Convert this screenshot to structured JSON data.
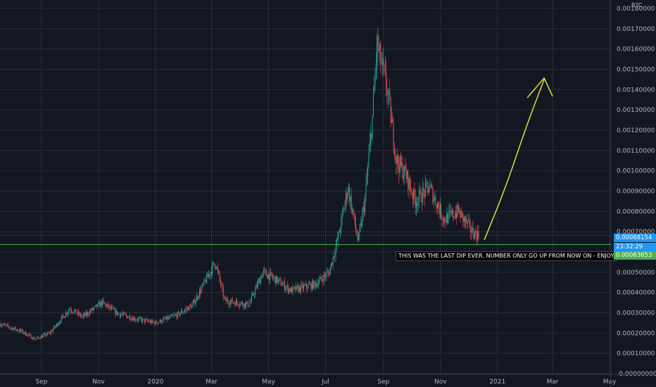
{
  "chart_data": {
    "type": "candlestick",
    "unit_label": "BTC",
    "y_ticks": [
      "0.00180000",
      "0.00170000",
      "0.00160000",
      "0.00150000",
      "0.00140000",
      "0.00130000",
      "0.00120000",
      "0.00110000",
      "0.00100000",
      "0.00090000",
      "0.00080000",
      "0.00070000",
      "0.00060000",
      "0.00050000",
      "0.00040000",
      "0.00030000",
      "0.00020000",
      "0.00010000",
      "-0.00000000"
    ],
    "ylim": [
      0,
      0.0018
    ],
    "x_ticks": [
      "Sep",
      "Nov",
      "2020",
      "Mar",
      "May",
      "Jul",
      "Sep",
      "Nov",
      "2021",
      "Mar",
      "May"
    ],
    "series_anchor_points": [
      {
        "x": "2019-07-15",
        "y": 0.00025
      },
      {
        "x": "2019-08-10",
        "y": 0.00021
      },
      {
        "x": "2019-08-25",
        "y": 0.00017
      },
      {
        "x": "2019-09-10",
        "y": 0.0002
      },
      {
        "x": "2019-10-01",
        "y": 0.00032
      },
      {
        "x": "2019-10-15",
        "y": 0.00028
      },
      {
        "x": "2019-11-05",
        "y": 0.00035
      },
      {
        "x": "2019-11-20",
        "y": 0.0003
      },
      {
        "x": "2019-12-10",
        "y": 0.00027
      },
      {
        "x": "2020-01-01",
        "y": 0.00025
      },
      {
        "x": "2020-01-25",
        "y": 0.00029
      },
      {
        "x": "2020-02-10",
        "y": 0.00034
      },
      {
        "x": "2020-02-25",
        "y": 0.00047
      },
      {
        "x": "2020-03-05",
        "y": 0.00055
      },
      {
        "x": "2020-03-15",
        "y": 0.00036
      },
      {
        "x": "2020-04-10",
        "y": 0.00034
      },
      {
        "x": "2020-04-25",
        "y": 0.0005
      },
      {
        "x": "2020-05-10",
        "y": 0.00046
      },
      {
        "x": "2020-05-25",
        "y": 0.00041
      },
      {
        "x": "2020-06-20",
        "y": 0.00044
      },
      {
        "x": "2020-07-05",
        "y": 0.0005
      },
      {
        "x": "2020-07-15",
        "y": 0.00068
      },
      {
        "x": "2020-07-25",
        "y": 0.00092
      },
      {
        "x": "2020-08-05",
        "y": 0.00065
      },
      {
        "x": "2020-08-12",
        "y": 0.00085
      },
      {
        "x": "2020-08-20",
        "y": 0.00125
      },
      {
        "x": "2020-08-25",
        "y": 0.00162
      },
      {
        "x": "2020-09-05",
        "y": 0.0014
      },
      {
        "x": "2020-09-15",
        "y": 0.00105
      },
      {
        "x": "2020-09-25",
        "y": 0.00098
      },
      {
        "x": "2020-10-05",
        "y": 0.00085
      },
      {
        "x": "2020-10-20",
        "y": 0.00092
      },
      {
        "x": "2020-11-05",
        "y": 0.00076
      },
      {
        "x": "2020-11-20",
        "y": 0.0008
      },
      {
        "x": "2020-12-05",
        "y": 0.0007
      },
      {
        "x": "2020-12-12",
        "y": 0.00068
      }
    ],
    "horizontal_line": {
      "y": 0.00063653,
      "color": "#4caf50"
    },
    "last_price_line": {
      "y": 0.00068154,
      "color": "#2196f3"
    },
    "projection_arrow": {
      "color": "#e9ec3b",
      "points": [
        {
          "x": "2020-12-18",
          "y": 0.00066
        },
        {
          "x": "2021-01-10",
          "y": 0.00092
        },
        {
          "x": "2021-02-01",
          "y": 0.00122
        },
        {
          "x": "2021-02-20",
          "y": 0.00145
        }
      ]
    },
    "grid": true
  },
  "labels": {
    "annotation": "THIS WAS THE LAST DIP EVER, NUMBER ONLY GO UP FROM NOW ON - ENJOY.",
    "price_badge": "0.00068154",
    "countdown_badge": "23:32:29",
    "level_badge": "0.00063653"
  },
  "colors": {
    "background": "#131722",
    "grid": "#2a2e39",
    "up": "#26a69a",
    "down": "#ef5350",
    "price_badge": "#2196f3",
    "level_badge": "#4caf50"
  }
}
